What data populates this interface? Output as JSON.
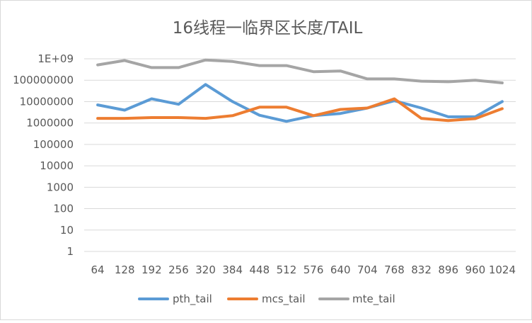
{
  "chart_data": {
    "type": "line",
    "title": "16线程一临界区长度/TAIL",
    "xlabel": "",
    "ylabel": "",
    "y_scale": "log",
    "ylim": [
      1,
      1000000000
    ],
    "y_tick_labels": [
      "1",
      "10",
      "100",
      "1000",
      "10000",
      "100000",
      "1000000",
      "10000000",
      "100000000",
      "1E+09"
    ],
    "categories": [
      "64",
      "128",
      "192",
      "256",
      "320",
      "384",
      "448",
      "512",
      "576",
      "640",
      "704",
      "768",
      "832",
      "896",
      "960",
      "1024"
    ],
    "grid": true,
    "legend_position": "bottom",
    "series": [
      {
        "name": "pth_tail",
        "color": "#5b9bd5",
        "values": [
          7000000,
          4000000,
          13500000,
          7500000,
          63000000,
          10000000,
          2300000,
          1200000,
          2200000,
          2800000,
          5000000,
          11000000,
          5000000,
          1950000,
          1950000,
          10000000
        ]
      },
      {
        "name": "mcs_tail",
        "color": "#ed7d31",
        "values": [
          1650000,
          1650000,
          1800000,
          1800000,
          1650000,
          2200000,
          5500000,
          5500000,
          2200000,
          4300000,
          5000000,
          13500000,
          1650000,
          1300000,
          1600000,
          4700000
        ]
      },
      {
        "name": "mte_tail",
        "color": "#a5a5a5",
        "values": [
          520000000,
          830000000,
          390000000,
          390000000,
          880000000,
          750000000,
          480000000,
          480000000,
          250000000,
          270000000,
          115000000,
          115000000,
          90000000,
          85000000,
          100000000,
          75000000
        ]
      }
    ]
  }
}
